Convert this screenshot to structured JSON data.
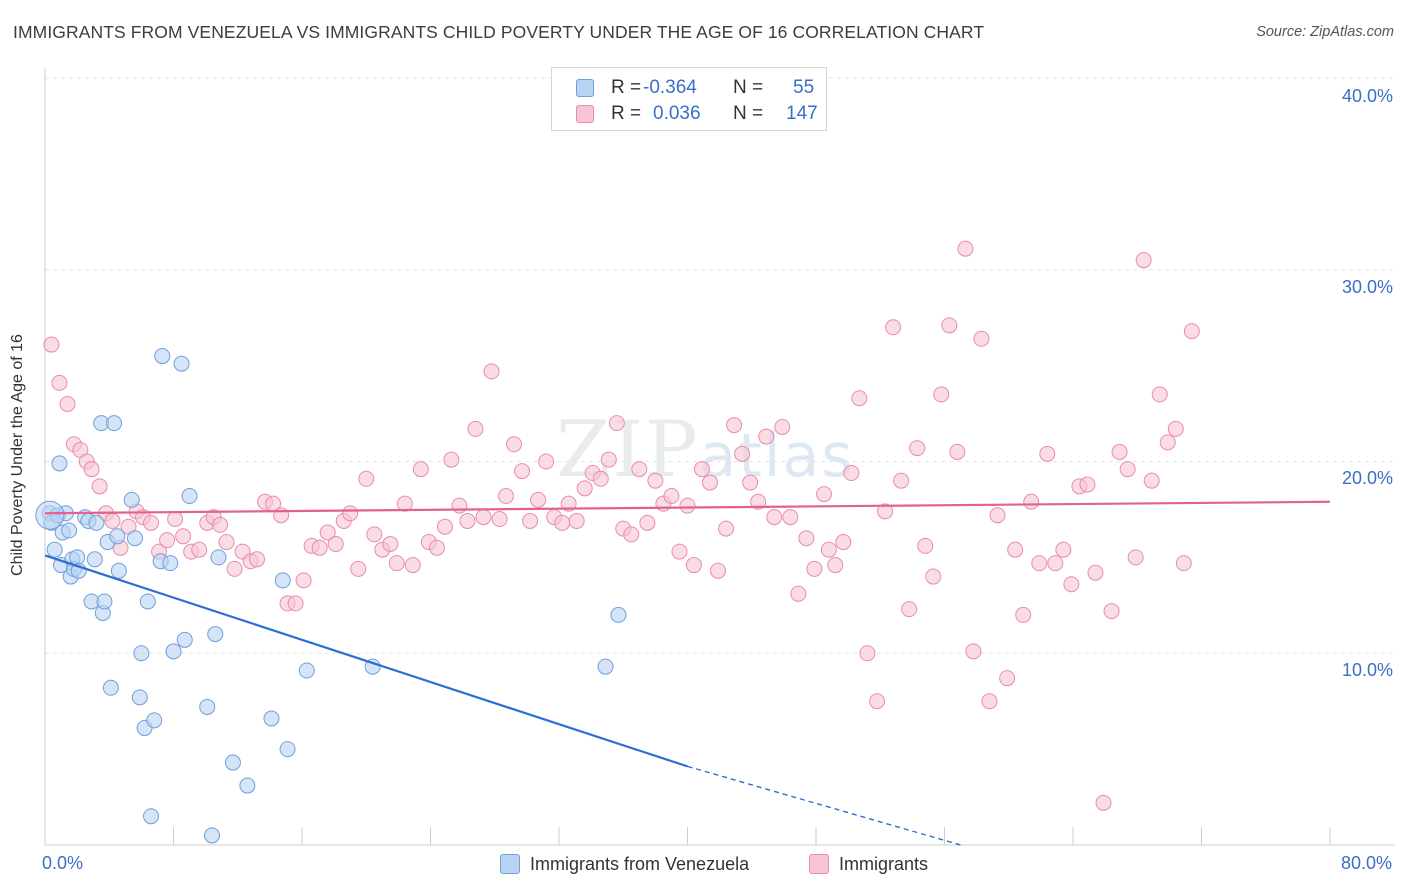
{
  "title": "IMMIGRANTS FROM VENEZUELA VS IMMIGRANTS CHILD POVERTY UNDER THE AGE OF 16 CORRELATION CHART",
  "source": "Source: ZipAtlas.com",
  "watermark": {
    "zip": "ZIP",
    "atlas": "atlas"
  },
  "colors": {
    "blue_fill": "#b9d3f2",
    "blue_stroke": "#6f9fdd",
    "blue_line": "#2c6fd1",
    "pink_fill": "#f7c4d4",
    "pink_stroke": "#e88daa",
    "pink_line": "#e2628e",
    "grid": "#e3e3e3",
    "tick_text": "#3b6fc6"
  },
  "legend": {
    "rows": [
      {
        "r_label": "R =",
        "r_value": "-0.364",
        "n_label": "N =",
        "n_value": "55"
      },
      {
        "r_label": "R =",
        "r_value": "0.036",
        "n_label": "N =",
        "n_value": "147"
      }
    ]
  },
  "chart_data": {
    "type": "scatter",
    "title": "IMMIGRANTS FROM VENEZUELA VS IMMIGRANTS CHILD POVERTY UNDER THE AGE OF 16 CORRELATION CHART",
    "xlabel": "",
    "ylabel": "Child Poverty Under the Age of 16",
    "xlim": [
      0,
      80
    ],
    "ylim": [
      0,
      40
    ],
    "x_tick_labels": [
      "0.0%",
      "80.0%"
    ],
    "y_ticks": [
      10,
      20,
      30,
      40
    ],
    "y_tick_labels": [
      "10.0%",
      "20.0%",
      "30.0%",
      "40.0%"
    ],
    "grid": true,
    "legend_position": "top-center",
    "series": [
      {
        "name": "Immigrants from Venezuela",
        "color": "blue",
        "r": -0.364,
        "n": 55,
        "trend": {
          "x0": 0,
          "y0": 15.1,
          "x1": 40,
          "y1": 4.1,
          "dash_to_x": 57,
          "dash_to_y": 0
        },
        "points": [
          [
            0.3,
            17.3
          ],
          [
            0.4,
            16.8
          ],
          [
            0.6,
            15.4
          ],
          [
            0.8,
            17.2
          ],
          [
            0.9,
            19.9
          ],
          [
            1.0,
            14.6
          ],
          [
            1.1,
            16.3
          ],
          [
            1.3,
            17.3
          ],
          [
            1.5,
            16.4
          ],
          [
            1.6,
            14.0
          ],
          [
            1.7,
            14.9
          ],
          [
            1.8,
            14.4
          ],
          [
            2.0,
            15.0
          ],
          [
            2.1,
            14.3
          ],
          [
            2.5,
            17.1
          ],
          [
            2.7,
            16.9
          ],
          [
            2.9,
            12.7
          ],
          [
            3.1,
            14.9
          ],
          [
            3.2,
            16.8
          ],
          [
            3.5,
            22.0
          ],
          [
            3.6,
            12.1
          ],
          [
            3.7,
            12.7
          ],
          [
            3.9,
            15.8
          ],
          [
            4.1,
            8.2
          ],
          [
            4.3,
            22.0
          ],
          [
            4.5,
            16.1
          ],
          [
            4.6,
            14.3
          ],
          [
            5.4,
            18.0
          ],
          [
            5.6,
            16.0
          ],
          [
            5.9,
            7.7
          ],
          [
            6.0,
            10.0
          ],
          [
            6.2,
            6.1
          ],
          [
            6.4,
            12.7
          ],
          [
            6.6,
            1.5
          ],
          [
            6.8,
            6.5
          ],
          [
            7.2,
            14.8
          ],
          [
            7.3,
            25.5
          ],
          [
            7.8,
            14.7
          ],
          [
            8.0,
            10.1
          ],
          [
            8.5,
            25.1
          ],
          [
            8.7,
            10.7
          ],
          [
            9.0,
            18.2
          ],
          [
            10.1,
            7.2
          ],
          [
            10.4,
            0.5
          ],
          [
            10.6,
            11.0
          ],
          [
            10.8,
            15.0
          ],
          [
            11.7,
            4.3
          ],
          [
            12.6,
            3.1
          ],
          [
            14.1,
            6.6
          ],
          [
            14.8,
            13.8
          ],
          [
            15.1,
            5.0
          ],
          [
            16.3,
            9.1
          ],
          [
            20.4,
            9.3
          ],
          [
            34.9,
            9.3
          ],
          [
            35.7,
            12.0
          ]
        ]
      },
      {
        "name": "Immigrants",
        "color": "pink",
        "r": 0.036,
        "n": 147,
        "trend": {
          "x0": 0,
          "y0": 17.3,
          "x1": 80,
          "y1": 17.9
        },
        "points": [
          [
            0.4,
            26.1
          ],
          [
            0.9,
            24.1
          ],
          [
            1.4,
            23.0
          ],
          [
            1.8,
            20.9
          ],
          [
            2.2,
            20.6
          ],
          [
            2.6,
            20.0
          ],
          [
            2.9,
            19.6
          ],
          [
            3.4,
            18.7
          ],
          [
            3.8,
            17.3
          ],
          [
            4.2,
            16.9
          ],
          [
            4.7,
            15.5
          ],
          [
            5.2,
            16.6
          ],
          [
            5.7,
            17.4
          ],
          [
            6.1,
            17.1
          ],
          [
            6.6,
            16.8
          ],
          [
            7.1,
            15.3
          ],
          [
            7.6,
            15.9
          ],
          [
            8.1,
            17.0
          ],
          [
            8.6,
            16.1
          ],
          [
            9.1,
            15.3
          ],
          [
            9.6,
            15.4
          ],
          [
            10.1,
            16.8
          ],
          [
            10.5,
            17.1
          ],
          [
            10.9,
            16.7
          ],
          [
            11.3,
            15.8
          ],
          [
            11.8,
            14.4
          ],
          [
            12.3,
            15.3
          ],
          [
            12.8,
            14.8
          ],
          [
            13.2,
            14.9
          ],
          [
            13.7,
            17.9
          ],
          [
            14.2,
            17.8
          ],
          [
            14.7,
            17.2
          ],
          [
            15.1,
            12.6
          ],
          [
            15.6,
            12.6
          ],
          [
            16.1,
            13.8
          ],
          [
            16.6,
            15.6
          ],
          [
            17.1,
            15.5
          ],
          [
            17.6,
            16.3
          ],
          [
            18.1,
            15.7
          ],
          [
            18.6,
            16.9
          ],
          [
            19.0,
            17.3
          ],
          [
            19.5,
            14.4
          ],
          [
            20.0,
            19.1
          ],
          [
            20.5,
            16.2
          ],
          [
            21.0,
            15.4
          ],
          [
            21.5,
            15.7
          ],
          [
            21.9,
            14.7
          ],
          [
            22.4,
            17.8
          ],
          [
            22.9,
            14.6
          ],
          [
            23.4,
            19.6
          ],
          [
            23.9,
            15.8
          ],
          [
            24.4,
            15.5
          ],
          [
            24.9,
            16.6
          ],
          [
            25.3,
            20.1
          ],
          [
            25.8,
            17.7
          ],
          [
            26.3,
            16.9
          ],
          [
            26.8,
            21.7
          ],
          [
            27.3,
            17.1
          ],
          [
            27.8,
            24.7
          ],
          [
            28.3,
            17.0
          ],
          [
            28.7,
            18.2
          ],
          [
            29.2,
            20.9
          ],
          [
            29.7,
            19.5
          ],
          [
            30.2,
            16.9
          ],
          [
            30.7,
            18.0
          ],
          [
            31.2,
            20.0
          ],
          [
            31.7,
            17.1
          ],
          [
            32.2,
            16.8
          ],
          [
            32.6,
            17.8
          ],
          [
            33.1,
            16.9
          ],
          [
            33.6,
            18.6
          ],
          [
            34.1,
            19.4
          ],
          [
            34.6,
            19.1
          ],
          [
            35.1,
            20.1
          ],
          [
            35.6,
            22.0
          ],
          [
            36.0,
            16.5
          ],
          [
            36.5,
            16.2
          ],
          [
            37.0,
            19.6
          ],
          [
            37.5,
            16.8
          ],
          [
            38.0,
            19.0
          ],
          [
            38.5,
            17.8
          ],
          [
            39.0,
            18.2
          ],
          [
            39.5,
            15.3
          ],
          [
            40.0,
            17.7
          ],
          [
            40.4,
            14.6
          ],
          [
            40.9,
            19.6
          ],
          [
            41.4,
            18.9
          ],
          [
            41.9,
            14.3
          ],
          [
            42.4,
            16.5
          ],
          [
            42.9,
            21.9
          ],
          [
            43.4,
            20.4
          ],
          [
            43.9,
            18.9
          ],
          [
            44.4,
            17.9
          ],
          [
            44.9,
            21.3
          ],
          [
            45.4,
            17.1
          ],
          [
            45.9,
            21.8
          ],
          [
            46.4,
            17.1
          ],
          [
            46.9,
            13.1
          ],
          [
            47.4,
            16.0
          ],
          [
            47.9,
            14.4
          ],
          [
            48.5,
            18.3
          ],
          [
            48.8,
            15.4
          ],
          [
            49.2,
            14.6
          ],
          [
            49.7,
            15.8
          ],
          [
            50.2,
            19.4
          ],
          [
            50.7,
            23.3
          ],
          [
            51.2,
            10.0
          ],
          [
            51.8,
            7.5
          ],
          [
            52.3,
            17.4
          ],
          [
            52.8,
            27.0
          ],
          [
            53.3,
            19.0
          ],
          [
            53.8,
            12.3
          ],
          [
            54.3,
            20.7
          ],
          [
            54.8,
            15.6
          ],
          [
            55.3,
            14.0
          ],
          [
            55.8,
            23.5
          ],
          [
            56.3,
            27.1
          ],
          [
            56.8,
            20.5
          ],
          [
            57.3,
            31.1
          ],
          [
            57.8,
            10.1
          ],
          [
            58.3,
            26.4
          ],
          [
            58.8,
            7.5
          ],
          [
            59.3,
            17.2
          ],
          [
            59.9,
            8.7
          ],
          [
            60.4,
            15.4
          ],
          [
            60.9,
            12.0
          ],
          [
            61.4,
            17.9
          ],
          [
            61.9,
            14.7
          ],
          [
            62.4,
            20.4
          ],
          [
            62.9,
            14.7
          ],
          [
            63.4,
            15.4
          ],
          [
            63.9,
            13.6
          ],
          [
            64.4,
            18.7
          ],
          [
            64.9,
            18.8
          ],
          [
            65.4,
            14.2
          ],
          [
            65.9,
            2.2
          ],
          [
            66.4,
            12.2
          ],
          [
            66.9,
            20.5
          ],
          [
            67.4,
            19.6
          ],
          [
            67.9,
            15.0
          ],
          [
            68.4,
            30.5
          ],
          [
            68.9,
            19.0
          ],
          [
            69.4,
            23.5
          ],
          [
            69.9,
            21.0
          ],
          [
            70.4,
            21.7
          ],
          [
            70.9,
            14.7
          ],
          [
            71.4,
            26.8
          ]
        ]
      }
    ]
  },
  "bottom_legend": [
    "Immigrants from Venezuela",
    "Immigrants"
  ]
}
